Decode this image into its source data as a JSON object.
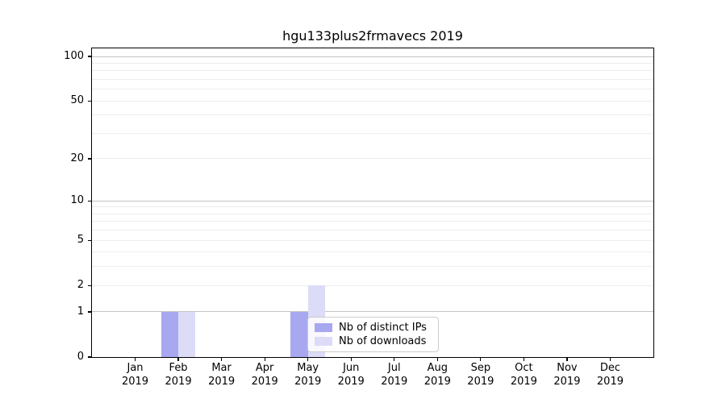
{
  "chart_data": {
    "type": "bar",
    "title": "hgu133plus2frmavecs 2019",
    "categories": [
      "Jan 2019",
      "Feb 2019",
      "Mar 2019",
      "Apr 2019",
      "May 2019",
      "Jun 2019",
      "Jul 2019",
      "Aug 2019",
      "Sep 2019",
      "Oct 2019",
      "Nov 2019",
      "Dec 2019"
    ],
    "series": [
      {
        "name": "Nb of distinct IPs",
        "color": "#a8a8f0",
        "values": [
          0,
          1,
          0,
          0,
          1,
          0,
          0,
          0,
          0,
          0,
          0,
          0
        ]
      },
      {
        "name": "Nb of downloads",
        "color": "#dcdcf8",
        "values": [
          0,
          1,
          0,
          0,
          2,
          0,
          0,
          0,
          0,
          0,
          0,
          0
        ]
      }
    ],
    "xlabel": "",
    "ylabel": "",
    "y_scale": "log1p",
    "y_tick_labels": [
      0,
      1,
      2,
      5,
      10,
      20,
      50,
      100
    ],
    "y_major_gridlines": [
      1,
      10,
      100
    ],
    "y_minor_gridlines": [
      2,
      3,
      4,
      5,
      6,
      7,
      8,
      9,
      20,
      30,
      40,
      50,
      60,
      70,
      80,
      90
    ],
    "ylim": [
      0,
      113
    ],
    "grid": "on",
    "legend_position": "inside lower-center"
  }
}
